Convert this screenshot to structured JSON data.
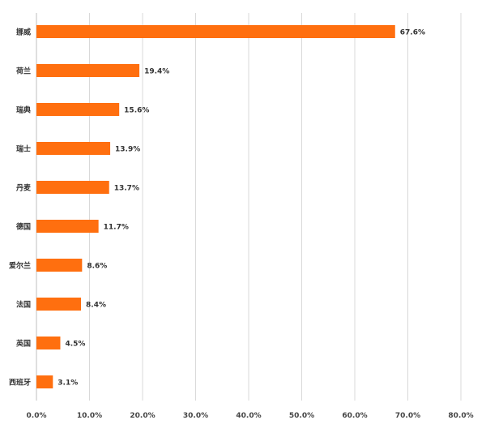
{
  "chart_data": {
    "type": "bar",
    "orientation": "horizontal",
    "categories": [
      "挪威",
      "荷兰",
      "瑞典",
      "瑞士",
      "丹麦",
      "德国",
      "爱尔兰",
      "法国",
      "英国",
      "西班牙"
    ],
    "values": [
      67.6,
      19.4,
      15.6,
      13.9,
      13.7,
      11.7,
      8.6,
      8.4,
      4.5,
      3.1
    ],
    "value_labels": [
      "67.6%",
      "19.4%",
      "15.6%",
      "13.9%",
      "13.7%",
      "11.7%",
      "8.6%",
      "8.4%",
      "4.5%",
      "3.1%"
    ],
    "x_ticks": [
      0,
      10,
      20,
      30,
      40,
      50,
      60,
      70,
      80
    ],
    "x_tick_labels": [
      "0.0%",
      "10.0%",
      "20.0%",
      "30.0%",
      "40.0%",
      "50.0%",
      "60.0%",
      "70.0%",
      "80.0%"
    ],
    "xlim": [
      0,
      80
    ],
    "grid": "vertical",
    "legend": "none",
    "bar_color": "#FF6F0F",
    "grid_color": "#D9D9D9",
    "axis_color": "#BFBFBF"
  }
}
